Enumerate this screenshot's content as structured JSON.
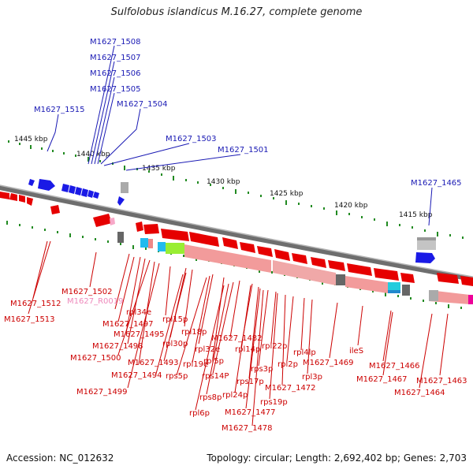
{
  "title": "Sulfolobus islandicus M.16.27, complete genome",
  "footer": {
    "accession": "Accession: NC_012632",
    "summary": "Topology: circular; Length: 2,692,402 bp; Genes: 2,703"
  },
  "ticks": [
    "1445 kbp",
    "1440 kbp",
    "1435 kbp",
    "1430 kbp",
    "1425 kbp",
    "1420 kbp",
    "1415 kbp"
  ],
  "labels_top": [
    "M1627_1508",
    "M1627_1507",
    "M1627_1506",
    "M1627_1505",
    "M1627_1504",
    "M1627_1515",
    "M1627_1503",
    "M1627_1501",
    "M1627_1465"
  ],
  "labels_bottom": [
    "M1627_1512",
    "M1627_1513",
    "M1627_1502",
    "M1627_R0019",
    "rpl34e",
    "M1627_1497",
    "M1627_1495",
    "M1627_1498",
    "M1627_1500",
    "M1627_1499",
    "rpl15p",
    "rpl30p",
    "rpl18p",
    "M1627_1493",
    "M1627_1494",
    "rpl32e",
    "rpl19e",
    "rps5p",
    "rpl5p",
    "M1627_1482",
    "rps14P",
    "rps8p",
    "rpl6p",
    "rpl14p",
    "rpl24p",
    "rps17p",
    "M1627_1477",
    "M1627_1478",
    "rps3p",
    "rpl22p",
    "rps19p",
    "M1627_1472",
    "rpl2p",
    "rpl4lp",
    "rpl3p",
    "M1627_1469",
    "ileS",
    "M1627_1466",
    "M1627_1467",
    "M1627_1463",
    "M1627_1464"
  ],
  "colors": {
    "forward_gene": "#1a1ae6",
    "reverse_gene": "#e60000",
    "pseudo_gene": "#f7a8c8",
    "label_forward": "#1a1ab4",
    "label_reverse": "#cc0000",
    "label_rna": "#ee88bb",
    "axis": "#777777",
    "tick": "#228b22"
  }
}
